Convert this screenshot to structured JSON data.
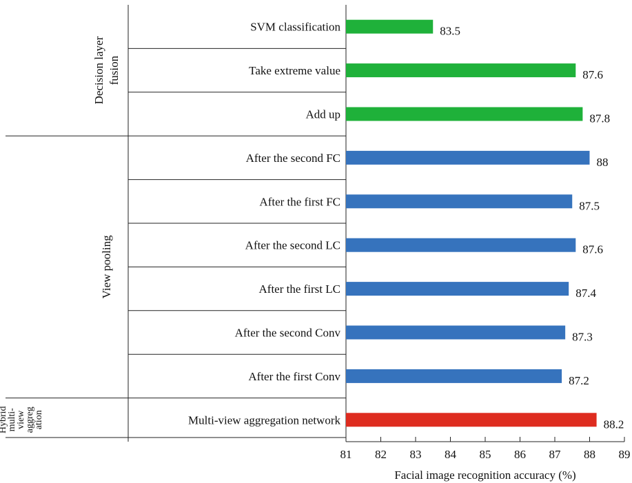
{
  "chart_data": {
    "type": "bar",
    "orientation": "horizontal",
    "xlabel": "Facial image recognition accuracy (%)",
    "xlim": [
      81,
      89
    ],
    "xticks": [
      81,
      82,
      83,
      84,
      85,
      86,
      87,
      88,
      89
    ],
    "grid": false,
    "legend": "none",
    "groups": [
      {
        "name": "Decision layer fusion",
        "color": "#1fb13a",
        "bars": [
          {
            "label": "SVM classification",
            "value": 83.5,
            "value_text": "83.5"
          },
          {
            "label": "Take extreme value",
            "value": 87.6,
            "value_text": "87.6"
          },
          {
            "label": "Add up",
            "value": 87.8,
            "value_text": "87.8"
          }
        ]
      },
      {
        "name": "View pooling",
        "color": "#3673bd",
        "bars": [
          {
            "label": "After the second FC",
            "value": 88,
            "value_text": "88"
          },
          {
            "label": "After the first FC",
            "value": 87.5,
            "value_text": "87.5"
          },
          {
            "label": "After the second LC",
            "value": 87.6,
            "value_text": "87.6"
          },
          {
            "label": "After the first LC",
            "value": 87.4,
            "value_text": "87.4"
          },
          {
            "label": "After the second Conv",
            "value": 87.3,
            "value_text": "87.3"
          },
          {
            "label": "After the first Conv",
            "value": 87.2,
            "value_text": "87.2"
          }
        ]
      },
      {
        "name": "Hybrid multi-view aggregation",
        "name_lines": [
          "Hybrid",
          "multi-",
          "view",
          "aggreg",
          "ation"
        ],
        "color": "#de2c1f",
        "bars": [
          {
            "label": "Multi-view aggregation network",
            "value": 88.2,
            "value_text": "88.2"
          }
        ]
      }
    ]
  }
}
